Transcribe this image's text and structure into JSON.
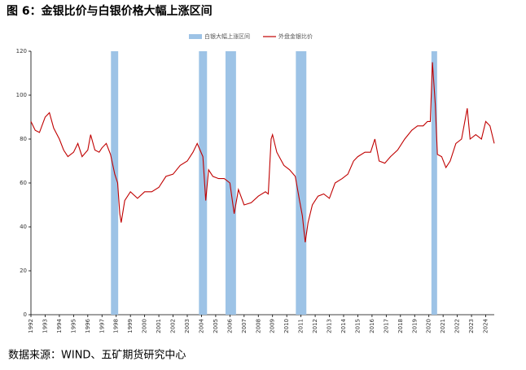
{
  "chart_data": {
    "type": "line",
    "title": "图 6：金银比价与白银价格大幅上涨区间",
    "source": "数据来源：WIND、五矿期货研究中心",
    "xlim": [
      1992,
      2024.6
    ],
    "xticks": [
      1992,
      1993,
      1994,
      1995,
      1996,
      1997,
      1998,
      1999,
      2000,
      2001,
      2002,
      2003,
      2004,
      2005,
      2006,
      2007,
      2008,
      2009,
      2010,
      2011,
      2012,
      2013,
      2014,
      2015,
      2016,
      2017,
      2018,
      2019,
      2020,
      2021,
      2022,
      2023,
      2024
    ],
    "ylim": [
      0,
      120
    ],
    "yticks": [
      0,
      20,
      40,
      60,
      80,
      100,
      120
    ],
    "grid": false,
    "legend": "top",
    "series": [
      {
        "name": "白银大幅上涨区间",
        "color": "#9dc3e6",
        "ranges": [
          [
            1997.63,
            1998.14
          ],
          [
            2003.82,
            2004.39
          ],
          [
            2005.69,
            2006.43
          ],
          [
            2010.64,
            2011.38
          ],
          [
            2020.18,
            2020.58
          ]
        ]
      },
      {
        "name": "外盘金银比价",
        "color": "#c00000",
        "x": [
          1992.0,
          1992.3,
          1992.6,
          1993.0,
          1993.3,
          1993.6,
          1994.0,
          1994.3,
          1994.6,
          1995.0,
          1995.3,
          1995.6,
          1996.0,
          1996.2,
          1996.5,
          1996.8,
          1997.0,
          1997.3,
          1997.6,
          1997.9,
          1998.1,
          1998.25,
          1998.35,
          1998.6,
          1999.0,
          1999.5,
          2000.0,
          2000.5,
          2001.0,
          2001.5,
          2002.0,
          2002.5,
          2003.0,
          2003.4,
          2003.7,
          2003.9,
          2004.1,
          2004.3,
          2004.5,
          2004.8,
          2005.2,
          2005.6,
          2006.0,
          2006.3,
          2006.6,
          2007.0,
          2007.5,
          2008.0,
          2008.5,
          2008.7,
          2008.9,
          2009.0,
          2009.3,
          2009.8,
          2010.2,
          2010.6,
          2010.9,
          2011.1,
          2011.3,
          2011.5,
          2011.8,
          2012.2,
          2012.6,
          2013.0,
          2013.4,
          2013.9,
          2014.3,
          2014.7,
          2015.0,
          2015.5,
          2015.9,
          2016.2,
          2016.5,
          2016.9,
          2017.3,
          2017.8,
          2018.3,
          2018.8,
          2019.2,
          2019.6,
          2019.9,
          2020.1,
          2020.25,
          2020.45,
          2020.6,
          2020.9,
          2021.2,
          2021.5,
          2021.9,
          2022.3,
          2022.7,
          2022.9,
          2023.3,
          2023.7,
          2024.0,
          2024.3,
          2024.6
        ],
        "values": [
          88,
          84,
          83,
          90,
          92,
          85,
          80,
          75,
          72,
          74,
          78,
          72,
          75,
          82,
          75,
          74,
          76,
          78,
          73,
          64,
          60,
          46,
          42,
          52,
          56,
          53,
          56,
          56,
          58,
          63,
          64,
          68,
          70,
          74,
          78,
          75,
          72,
          52,
          66,
          63,
          62,
          62,
          60,
          46,
          57,
          50,
          51,
          54,
          56,
          55,
          80,
          82,
          74,
          68,
          66,
          63,
          52,
          45,
          33,
          42,
          50,
          54,
          55,
          53,
          60,
          62,
          64,
          70,
          72,
          74,
          74,
          80,
          70,
          69,
          72,
          75,
          80,
          84,
          86,
          86,
          88,
          88,
          115,
          96,
          73,
          72,
          67,
          70,
          78,
          80,
          94,
          80,
          82,
          80,
          88,
          86,
          78
        ]
      }
    ]
  }
}
